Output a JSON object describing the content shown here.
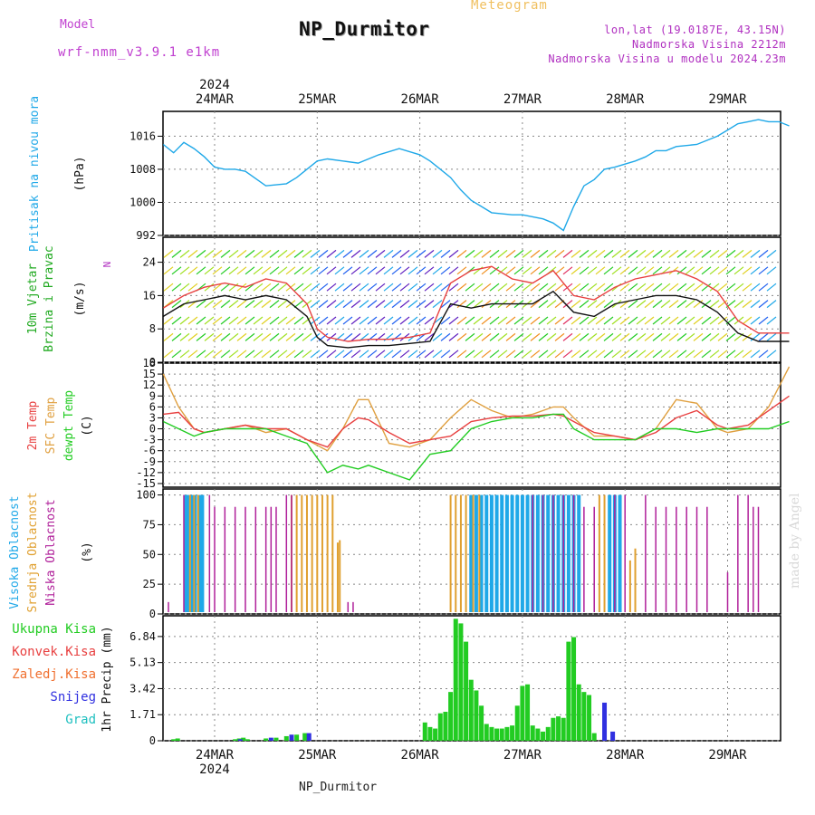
{
  "header": {
    "top_label": "Meteogram",
    "title": "NP_Durmitor",
    "model_label": "Model",
    "model_version": "wrf-nmm_v3.9.1  e1km",
    "location": "lon,lat (19.0187E, 43.15N)",
    "elevation": "Nadmorska Visina 2212m",
    "model_elevation": "Nadmorska Visina u modelu 2024.23m"
  },
  "footer": {
    "station": "NP_Durmitor",
    "credit": "made by Angel"
  },
  "colors": {
    "pressure": "#1fa8e8",
    "dewpoint": "#22cc22",
    "t2m": "#e84040",
    "sfc": "#e0a040",
    "high_cloud": "#1fa8e8",
    "mid_cloud": "#e0a030",
    "low_cloud": "#b0209a",
    "total_precip": "#22cc22",
    "conv_precip": "#e84040",
    "snow": "#3030e0",
    "grad": "#20c0c0"
  },
  "chart_data": [
    {
      "type": "line",
      "name": "pressure",
      "ylabel_left": "Pritisak na nivou mora",
      "ylabel_unit": "(hPa)",
      "ylim": [
        992,
        1022
      ],
      "yticks": [
        992,
        1000,
        1008,
        1016
      ],
      "x_labels_top": [
        "24MAR",
        "25MAR",
        "26MAR",
        "27MAR",
        "28MAR",
        "29MAR"
      ],
      "x_year_top": "2024",
      "grid": true,
      "series": [
        {
          "x": [
            0,
            0.1,
            0.2,
            0.3,
            0.4,
            0.5,
            0.6,
            0.7,
            0.8,
            1.0,
            1.2,
            1.3,
            1.5,
            1.6,
            1.75,
            1.9,
            2.1,
            2.3,
            2.5,
            2.6,
            2.7,
            2.8,
            2.9,
            3.0,
            3.1,
            3.2,
            3.4,
            3.5,
            3.6,
            3.7,
            3.8,
            3.9,
            4.0,
            4.1,
            4.2,
            4.3,
            4.4,
            4.6,
            4.7,
            4.8,
            4.9,
            5.0,
            5.2,
            5.4,
            5.5,
            5.6,
            5.7,
            5.8,
            5.9,
            6.0,
            6.1
          ],
          "values": [
            1014,
            1012,
            1014.5,
            1013,
            1011,
            1008.5,
            1008,
            1008,
            1007.5,
            1004,
            1004.5,
            1006,
            1010,
            1010.5,
            1010,
            1009.5,
            1011.5,
            1013,
            1011.5,
            1010,
            1008,
            1006,
            1003,
            1000.5,
            999,
            997.5,
            997,
            997,
            996.5,
            996,
            995,
            993.2,
            999,
            1004,
            1005.5,
            1008,
            1008.5,
            1010,
            1011,
            1012.5,
            1012.5,
            1013.5,
            1014,
            1016,
            1017.5,
            1019,
            1019.5,
            1020,
            1019.5,
            1019.5,
            1018.5
          ]
        }
      ]
    },
    {
      "type": "line",
      "name": "wind",
      "ylabel_left": "10m Vjetar",
      "ylabel_left2": "Brzina i Pravac",
      "ylabel_unit": "(m/s)",
      "direction_label": "N",
      "ylim": [
        0,
        30
      ],
      "yticks": [
        0,
        8,
        16,
        24
      ],
      "grid": true,
      "series": [
        {
          "name": "mean",
          "x": [
            0,
            0.2,
            0.4,
            0.6,
            0.8,
            1.0,
            1.2,
            1.4,
            1.5,
            1.6,
            1.8,
            2.0,
            2.2,
            2.4,
            2.6,
            2.8,
            3.0,
            3.2,
            3.4,
            3.6,
            3.8,
            4.0,
            4.2,
            4.4,
            4.6,
            4.8,
            5.0,
            5.2,
            5.4,
            5.6,
            5.8,
            6.1
          ],
          "values": [
            11,
            14,
            15,
            16,
            15,
            16,
            15,
            11,
            6,
            4,
            3.5,
            4,
            4,
            4.5,
            5,
            14,
            13,
            14,
            14,
            14,
            17,
            12,
            11,
            14,
            15,
            16,
            16,
            15,
            12,
            7,
            5,
            5
          ]
        },
        {
          "name": "gust",
          "x": [
            0,
            0.2,
            0.4,
            0.6,
            0.8,
            1.0,
            1.2,
            1.4,
            1.5,
            1.6,
            1.8,
            2.0,
            2.2,
            2.4,
            2.6,
            2.8,
            3.0,
            3.2,
            3.4,
            3.6,
            3.8,
            4.0,
            4.2,
            4.4,
            4.6,
            4.8,
            5.0,
            5.2,
            5.4,
            5.6,
            5.8,
            6.1
          ],
          "values": [
            13,
            16,
            18,
            19,
            18,
            20,
            19,
            14,
            8,
            6,
            5,
            5.5,
            5.5,
            6,
            7,
            19,
            22,
            23,
            20,
            19,
            22,
            16,
            15,
            18,
            20,
            21,
            22,
            20,
            17,
            10,
            7,
            7
          ]
        }
      ]
    },
    {
      "type": "line",
      "name": "temperature",
      "ylabel_left": "2m Temp",
      "ylabel_left2": "SFC Temp",
      "ylabel_left3": "dewpt Temp",
      "ylabel_unit": "(C)",
      "ylim": [
        -16,
        18
      ],
      "yticks": [
        -15,
        -12,
        -9,
        -6,
        -3,
        0,
        3,
        6,
        9,
        12,
        15,
        18
      ],
      "grid": true,
      "series": [
        {
          "name": "2m Temp",
          "x": [
            0,
            0.15,
            0.3,
            0.4,
            0.6,
            0.8,
            1.0,
            1.2,
            1.4,
            1.6,
            1.75,
            1.9,
            2.0,
            2.2,
            2.4,
            2.6,
            2.8,
            3.0,
            3.2,
            3.4,
            3.6,
            3.8,
            3.9,
            4.0,
            4.2,
            4.4,
            4.6,
            4.8,
            5.0,
            5.2,
            5.4,
            5.5,
            5.7,
            5.9,
            6.1
          ],
          "values": [
            4,
            4.5,
            0,
            -1,
            0,
            1,
            0,
            0,
            -3,
            -5,
            0,
            3,
            2.5,
            -1,
            -4,
            -3,
            -2,
            2,
            3,
            3.5,
            3.5,
            4,
            3.5,
            2,
            -1,
            -2,
            -3,
            -1,
            3,
            5,
            1,
            0,
            1,
            5,
            9
          ]
        },
        {
          "name": "SFC Temp",
          "x": [
            0,
            0.15,
            0.3,
            0.4,
            0.6,
            0.8,
            1.0,
            1.2,
            1.4,
            1.6,
            1.75,
            1.9,
            2.0,
            2.2,
            2.4,
            2.6,
            2.8,
            3.0,
            3.2,
            3.4,
            3.6,
            3.8,
            3.9,
            4.0,
            4.2,
            4.4,
            4.6,
            4.8,
            5.0,
            5.2,
            5.4,
            5.5,
            5.7,
            5.9,
            6.1
          ],
          "values": [
            15,
            6,
            0,
            -1,
            0,
            1,
            -1,
            0,
            -3,
            -6,
            0,
            8,
            8,
            -4,
            -5,
            -3,
            3,
            8,
            5,
            3,
            4,
            6,
            6,
            3,
            -2,
            -2,
            -3,
            0,
            8,
            7,
            0,
            -1,
            0,
            6,
            17
          ]
        },
        {
          "name": "dewpt Temp",
          "x": [
            0,
            0.15,
            0.3,
            0.4,
            0.6,
            0.8,
            1.0,
            1.2,
            1.4,
            1.6,
            1.75,
            1.9,
            2.0,
            2.2,
            2.4,
            2.6,
            2.8,
            3.0,
            3.2,
            3.4,
            3.6,
            3.8,
            3.9,
            4.0,
            4.2,
            4.4,
            4.6,
            4.8,
            5.0,
            5.2,
            5.4,
            5.5,
            5.7,
            5.9,
            6.1
          ],
          "values": [
            2,
            0,
            -2,
            -1,
            0,
            0,
            0,
            -2,
            -4,
            -12,
            -10,
            -11,
            -10,
            -12,
            -14,
            -7,
            -6,
            0,
            2,
            3,
            3,
            4,
            4,
            0,
            -3,
            -3,
            -3,
            0,
            0,
            -1,
            0,
            0,
            0,
            0,
            2
          ]
        }
      ]
    },
    {
      "type": "bar",
      "name": "clouds",
      "ylabel_left": "Visoka Oblacnost",
      "ylabel_left2": "Srednja Oblacnost",
      "ylabel_left3": "Niska Oblacnost",
      "ylabel_unit": "(%)",
      "ylim": [
        0,
        105
      ],
      "yticks": [
        0,
        25,
        50,
        75,
        100
      ],
      "grid": true,
      "series": [
        {
          "name": "Visoka Oblacnost",
          "x": [
            0.22,
            0.24,
            0.28,
            0.31,
            0.35,
            0.38,
            3.0,
            3.05,
            3.1,
            3.15,
            3.2,
            3.25,
            3.3,
            3.35,
            3.4,
            3.45,
            3.5,
            3.55,
            3.6,
            3.65,
            3.7,
            3.75,
            3.8,
            3.85,
            3.9,
            3.95,
            4.0,
            4.05,
            4.35,
            4.4,
            4.45
          ],
          "values": [
            100,
            100,
            100,
            100,
            100,
            100,
            100,
            100,
            100,
            100,
            100,
            100,
            100,
            100,
            100,
            100,
            100,
            100,
            100,
            100,
            100,
            100,
            100,
            100,
            100,
            100,
            100,
            100,
            100,
            100,
            100
          ]
        },
        {
          "name": "Srednja Oblacnost",
          "x": [
            0.26,
            0.3,
            0.34,
            1.25,
            1.3,
            1.35,
            1.4,
            1.45,
            1.5,
            1.55,
            1.6,
            1.65,
            1.7,
            1.72,
            2.8,
            2.85,
            2.9,
            2.95,
            3.02,
            3.08,
            4.25,
            4.3,
            4.55,
            4.6
          ],
          "values": [
            100,
            100,
            100,
            100,
            100,
            100,
            100,
            100,
            100,
            100,
            100,
            100,
            60,
            62,
            100,
            100,
            100,
            100,
            100,
            100,
            100,
            100,
            45,
            55
          ]
        },
        {
          "name": "Niska Oblacnost",
          "x": [
            0.05,
            0.2,
            0.45,
            0.5,
            0.6,
            0.7,
            0.8,
            0.9,
            1.0,
            1.05,
            1.1,
            1.2,
            1.25,
            1.8,
            1.85,
            3.6,
            3.7,
            3.8,
            3.9,
            4.0,
            4.1,
            4.2,
            4.4,
            4.5,
            4.7,
            4.8,
            4.9,
            5.0,
            5.1,
            5.2,
            5.3,
            5.5,
            5.6,
            5.7,
            5.75,
            5.8
          ],
          "values": [
            10,
            100,
            100,
            90,
            90,
            90,
            90,
            90,
            90,
            90,
            90,
            100,
            100,
            10,
            10,
            100,
            100,
            100,
            100,
            100,
            90,
            90,
            100,
            100,
            100,
            90,
            90,
            90,
            90,
            90,
            90,
            35,
            100,
            100,
            90,
            90
          ]
        }
      ]
    },
    {
      "type": "bar",
      "name": "precip",
      "ylabel_left": "1hr Precip (mm)",
      "legend": [
        "Ukupna Kisa",
        "Konvek.Kisa",
        "Zaledj.Kisa",
        "Snijeg",
        "Grad"
      ],
      "ylim": [
        0,
        8.2
      ],
      "yticks": [
        0,
        1.71,
        3.42,
        5.13,
        6.84
      ],
      "x_labels_bottom": [
        "24MAR",
        "25MAR",
        "26MAR",
        "27MAR",
        "28MAR",
        "29MAR"
      ],
      "x_year_bottom": "2024",
      "grid": true,
      "series": [
        {
          "name": "Ukupna Kisa",
          "x": [
            0.1,
            0.14,
            0.7,
            0.74,
            0.78,
            0.82,
            1.0,
            1.1,
            1.2,
            1.3,
            1.38,
            2.55,
            2.6,
            2.65,
            2.7,
            2.75,
            2.8,
            2.85,
            2.9,
            2.95,
            3.0,
            3.05,
            3.1,
            3.15,
            3.2,
            3.25,
            3.3,
            3.35,
            3.4,
            3.45,
            3.5,
            3.55,
            3.6,
            3.65,
            3.7,
            3.75,
            3.8,
            3.85,
            3.9,
            3.95,
            4.0,
            4.05,
            4.1,
            4.15,
            4.2
          ],
          "values": [
            0.1,
            0.15,
            0.1,
            0.15,
            0.2,
            0.1,
            0.15,
            0.2,
            0.3,
            0.4,
            0.5,
            1.2,
            0.9,
            0.8,
            1.8,
            1.9,
            3.2,
            8.0,
            7.7,
            6.5,
            4.0,
            3.3,
            2.3,
            1.1,
            0.9,
            0.8,
            0.8,
            0.9,
            1.0,
            2.3,
            3.6,
            3.7,
            1.0,
            0.8,
            0.6,
            0.9,
            1.5,
            1.6,
            1.5,
            6.5,
            6.8,
            3.7,
            3.2,
            3.0,
            0.5
          ]
        },
        {
          "name": "Snijeg",
          "x": [
            0.75,
            1.05,
            1.25,
            1.42,
            4.3,
            4.38
          ],
          "values": [
            0.1,
            0.2,
            0.4,
            0.5,
            2.5,
            0.6
          ]
        }
      ]
    }
  ]
}
